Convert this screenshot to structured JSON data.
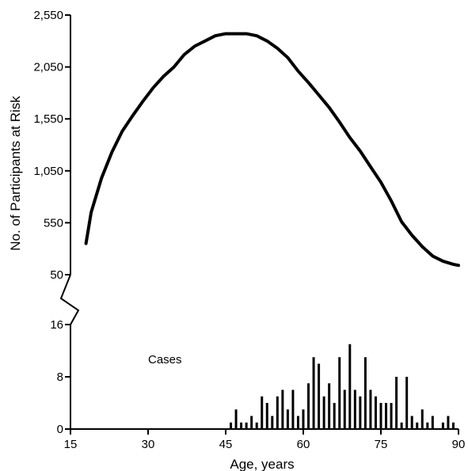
{
  "chart_data": [
    {
      "type": "line",
      "panel": "upper",
      "title": "",
      "xlabel": "Age, years",
      "ylabel": "No. of Participants at Risk",
      "xlim": [
        15,
        90
      ],
      "ylim": [
        50,
        2550
      ],
      "y_ticks": [
        {
          "value": 50,
          "label": "50"
        },
        {
          "value": 550,
          "label": "550"
        },
        {
          "value": 1050,
          "label": "1,050"
        },
        {
          "value": 1550,
          "label": "1,550"
        },
        {
          "value": 2050,
          "label": "2,050"
        },
        {
          "value": 2550,
          "label": "2,550"
        }
      ],
      "x": [
        18,
        19,
        21,
        23,
        25,
        27,
        29,
        31,
        33,
        35,
        37,
        39,
        41,
        43,
        45,
        47,
        49,
        51,
        53,
        55,
        57,
        59,
        61,
        63,
        65,
        67,
        69,
        71,
        73,
        75,
        77,
        79,
        81,
        83,
        85,
        87,
        89,
        90
      ],
      "y": [
        350,
        650,
        980,
        1230,
        1430,
        1580,
        1720,
        1850,
        1960,
        2050,
        2170,
        2250,
        2300,
        2350,
        2370,
        2370,
        2370,
        2350,
        2300,
        2230,
        2140,
        2010,
        1900,
        1780,
        1660,
        1520,
        1370,
        1240,
        1090,
        940,
        760,
        560,
        430,
        320,
        230,
        180,
        150,
        140
      ],
      "grid": false
    },
    {
      "type": "bar",
      "panel": "lower",
      "title": "",
      "annotation": "Cases",
      "xlabel": "Age, years",
      "xlim": [
        15,
        90
      ],
      "ylim": [
        0,
        16
      ],
      "x_ticks": [
        {
          "value": 15,
          "label": "15"
        },
        {
          "value": 30,
          "label": "30"
        },
        {
          "value": 45,
          "label": "45"
        },
        {
          "value": 60,
          "label": "60"
        },
        {
          "value": 75,
          "label": "75"
        },
        {
          "value": 90,
          "label": "90"
        }
      ],
      "y_ticks": [
        {
          "value": 0,
          "label": "0"
        },
        {
          "value": 8,
          "label": "8"
        },
        {
          "value": 16,
          "label": "16"
        }
      ],
      "x": [
        46,
        47,
        48,
        49,
        50,
        51,
        52,
        53,
        54,
        55,
        56,
        57,
        58,
        59,
        60,
        61,
        62,
        63,
        64,
        65,
        66,
        67,
        68,
        69,
        70,
        71,
        72,
        73,
        74,
        75,
        76,
        77,
        78,
        79,
        80,
        81,
        82,
        83,
        84,
        85,
        86,
        87,
        88,
        89
      ],
      "values": [
        1,
        3,
        1,
        1,
        2,
        1,
        5,
        4,
        2,
        5,
        6,
        3,
        6,
        2,
        3,
        7,
        11,
        10,
        5,
        7,
        4,
        11,
        6,
        13,
        6,
        5,
        11,
        6,
        5,
        4,
        4,
        4,
        8,
        1,
        8,
        2,
        1,
        3,
        1,
        2,
        0,
        1,
        2,
        1
      ],
      "grid": false
    }
  ]
}
